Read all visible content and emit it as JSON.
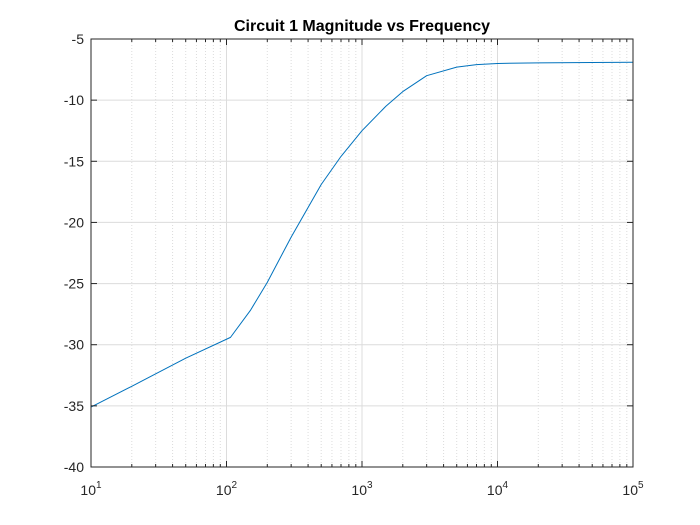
{
  "chart_data": {
    "type": "line",
    "title": "Circuit 1 Magnitude vs Frequency",
    "xlabel": "",
    "ylabel": "",
    "x_scale": "log",
    "xlim": [
      10,
      100000
    ],
    "ylim": [
      -40,
      -5
    ],
    "grid": true,
    "minor_grid_x": true,
    "x_ticks": [
      {
        "base": "10",
        "exp": "1",
        "value": 10
      },
      {
        "base": "10",
        "exp": "2",
        "value": 100
      },
      {
        "base": "10",
        "exp": "3",
        "value": 1000
      },
      {
        "base": "10",
        "exp": "4",
        "value": 10000
      },
      {
        "base": "10",
        "exp": "5",
        "value": 100000
      }
    ],
    "y_ticks": [
      "-5",
      "-10",
      "-15",
      "-20",
      "-25",
      "-30",
      "-35",
      "-40"
    ],
    "line_color": "#0072BD",
    "series": [
      {
        "x": [
          10,
          20,
          50,
          107,
          150,
          200,
          300,
          500,
          700,
          1000,
          1500,
          2000,
          3000,
          5000,
          7000,
          10000,
          20000,
          50000,
          100000
        ],
        "y": [
          -35.1,
          -33.4,
          -31.1,
          -29.4,
          -27.2,
          -24.9,
          -21.2,
          -16.9,
          -14.6,
          -12.5,
          -10.5,
          -9.3,
          -8.0,
          -7.3,
          -7.1,
          -7.0,
          -6.95,
          -6.92,
          -6.9
        ]
      }
    ]
  }
}
